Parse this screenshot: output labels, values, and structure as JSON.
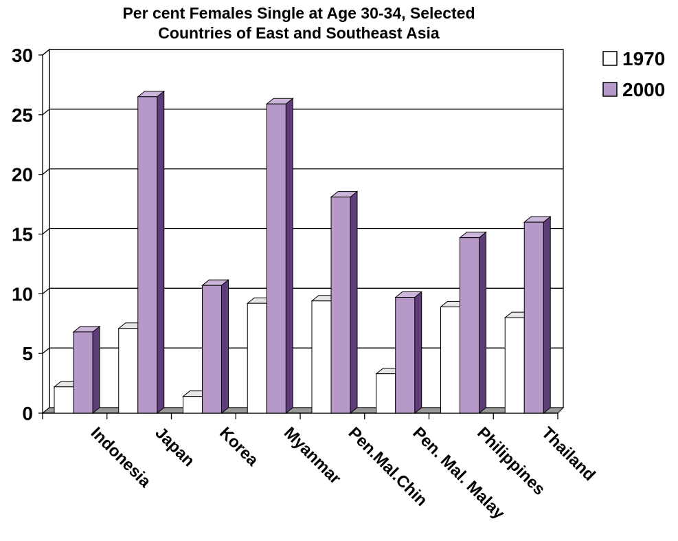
{
  "chart_data": {
    "type": "bar",
    "title_lines": [
      "Per cent Females Single at Age 30-34, Selected",
      "Countries of East and Southeast Asia"
    ],
    "categories": [
      "Indonesia",
      "Japan",
      "Korea",
      "Myanmar",
      "Pen.Mal.Chin",
      "Pen. Mal. Malay",
      "Philippines",
      "Thailand"
    ],
    "series": [
      {
        "name": "1970",
        "values": [
          2.2,
          7.1,
          1.4,
          9.2,
          9.4,
          3.3,
          8.9,
          8.0
        ],
        "color": "#ffffff"
      },
      {
        "name": "2000",
        "values": [
          6.8,
          26.5,
          10.7,
          25.9,
          18.1,
          9.7,
          14.7,
          16.0
        ],
        "color": "#b799c9"
      }
    ],
    "ylim": [
      0,
      30
    ],
    "yticks": [
      "0",
      "5",
      "10",
      "15",
      "20",
      "25",
      "30"
    ],
    "grid": true,
    "legend": "top-right"
  }
}
